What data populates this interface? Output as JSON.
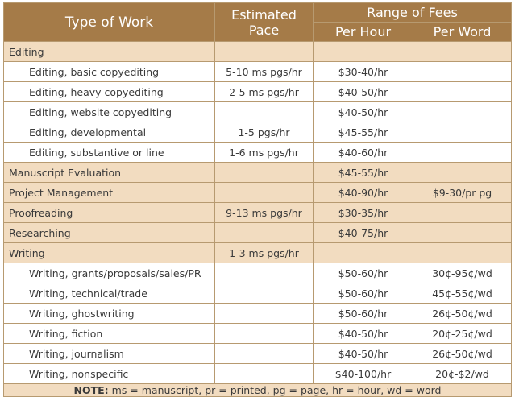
{
  "header": {
    "type_of_work": "Type of Work",
    "estimated_pace_line1": "Estimated",
    "estimated_pace_line2": "Pace",
    "range_of_fees": "Range of Fees",
    "per_hour": "Per Hour",
    "per_word": "Per Word"
  },
  "rows": [
    {
      "kind": "category",
      "work": "Editing",
      "pace": "",
      "per_hour": "",
      "per_word": ""
    },
    {
      "kind": "sub",
      "work": "Editing, basic copyediting",
      "pace": "5-10 ms pgs/hr",
      "per_hour": "$30-40/hr",
      "per_word": ""
    },
    {
      "kind": "sub",
      "work": "Editing, heavy copyediting",
      "pace": "2-5 ms pgs/hr",
      "per_hour": "$40-50/hr",
      "per_word": ""
    },
    {
      "kind": "sub",
      "work": "Editing, website copyediting",
      "pace": "",
      "per_hour": "$40-50/hr",
      "per_word": ""
    },
    {
      "kind": "sub",
      "work": "Editing, developmental",
      "pace": "1-5 pgs/hr",
      "per_hour": "$45-55/hr",
      "per_word": ""
    },
    {
      "kind": "sub",
      "work": "Editing, substantive or line",
      "pace": "1-6 ms pgs/hr",
      "per_hour": "$40-60/hr",
      "per_word": ""
    },
    {
      "kind": "category",
      "work": "Manuscript Evaluation",
      "pace": "",
      "per_hour": "$45-55/hr",
      "per_word": ""
    },
    {
      "kind": "category",
      "work": "Project Management",
      "pace": "",
      "per_hour": "$40-90/hr",
      "per_word": "$9-30/pr pg"
    },
    {
      "kind": "category",
      "work": "Proofreading",
      "pace": "9-13 ms pgs/hr",
      "per_hour": "$30-35/hr",
      "per_word": ""
    },
    {
      "kind": "category",
      "work": "Researching",
      "pace": "",
      "per_hour": "$40-75/hr",
      "per_word": ""
    },
    {
      "kind": "category",
      "work": "Writing",
      "pace": "1-3 ms pgs/hr",
      "per_hour": "",
      "per_word": ""
    },
    {
      "kind": "sub",
      "work": "Writing, grants/proposals/sales/PR",
      "pace": "",
      "per_hour": "$50-60/hr",
      "per_word": "30¢-95¢/wd"
    },
    {
      "kind": "sub",
      "work": "Writing, technical/trade",
      "pace": "",
      "per_hour": "$50-60/hr",
      "per_word": "45¢-55¢/wd"
    },
    {
      "kind": "sub",
      "work": "Writing, ghostwriting",
      "pace": "",
      "per_hour": "$50-60/hr",
      "per_word": "26¢-50¢/wd"
    },
    {
      "kind": "sub",
      "work": "Writing, fiction",
      "pace": "",
      "per_hour": "$40-50/hr",
      "per_word": "20¢-25¢/wd"
    },
    {
      "kind": "sub",
      "work": "Writing, journalism",
      "pace": "",
      "per_hour": "$40-50/hr",
      "per_word": "26¢-50¢/wd"
    },
    {
      "kind": "sub",
      "work": "Writing, nonspecific",
      "pace": "",
      "per_hour": "$40-100/hr",
      "per_word": "20¢-$2/wd"
    }
  ],
  "note": {
    "label": "NOTE:",
    "text": " ms = manuscript, pr = printed, pg = page, hr = hour, wd = word"
  },
  "colors": {
    "header_bg": "#a57b48",
    "category_bg": "#f2dcc0",
    "border": "#b79a70",
    "text": "#3a3a3a"
  }
}
